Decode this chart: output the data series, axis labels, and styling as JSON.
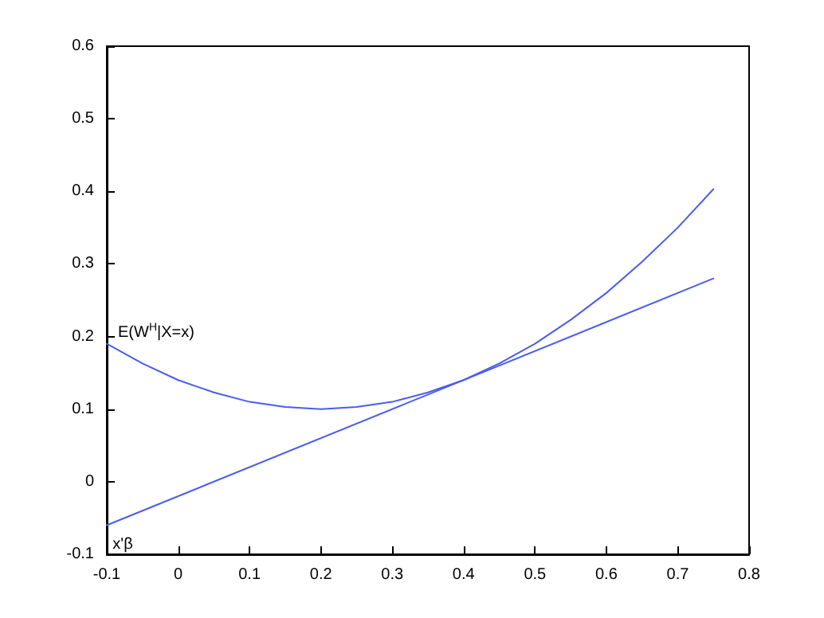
{
  "chart_data": {
    "type": "line",
    "xlim": [
      -0.1,
      0.8
    ],
    "xticks": [
      -0.1,
      0,
      0.1,
      0.2,
      0.3,
      0.4,
      0.5,
      0.6,
      0.7,
      0.8
    ],
    "ylim": [
      -0.1,
      0.6
    ],
    "yticks": [
      -0.1,
      0,
      0.1,
      0.2,
      0.3,
      0.4,
      0.5,
      0.6
    ],
    "grid": false,
    "legend": false,
    "marker": "none",
    "line_style": "solid",
    "series": [
      {
        "name": "E(W$^{H}$|X=x)",
        "color": "#4a5cf0",
        "x": [
          -0.1,
          -0.05,
          0,
          0.05,
          0.1,
          0.15,
          0.2,
          0.25,
          0.3,
          0.35,
          0.4,
          0.45,
          0.5,
          0.55,
          0.6,
          0.65,
          0.7,
          0.75
        ],
        "values": [
          0.19,
          0.163,
          0.14,
          0.123,
          0.11,
          0.103,
          0.1,
          0.103,
          0.11,
          0.123,
          0.14,
          0.163,
          0.19,
          0.223,
          0.26,
          0.303,
          0.35,
          0.403
        ]
      },
      {
        "name": "x'β",
        "color": "#4a5cf0",
        "x": [
          -0.1,
          0.75
        ],
        "values": [
          -0.06,
          0.28
        ]
      }
    ]
  }
}
